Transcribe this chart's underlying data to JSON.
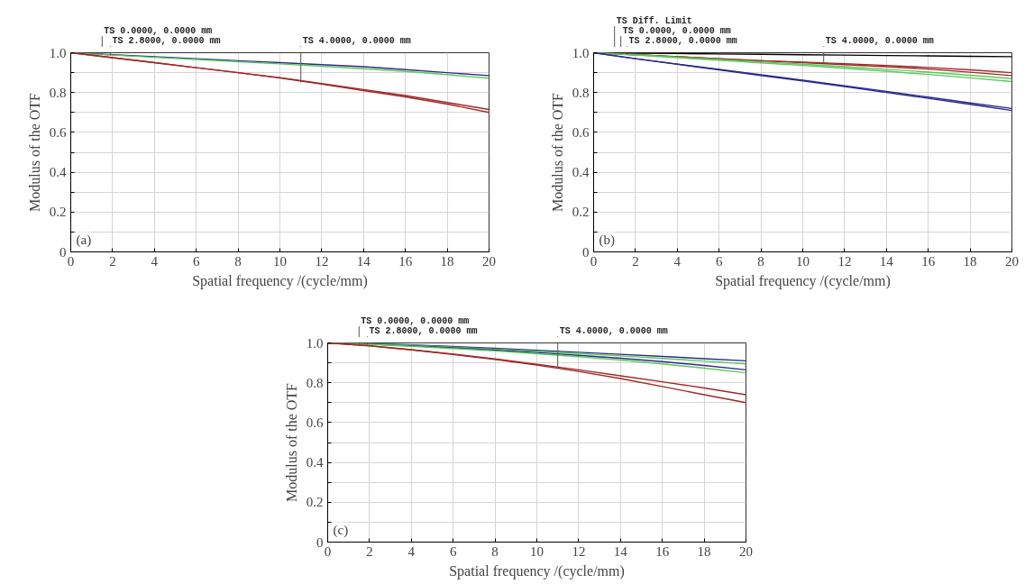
{
  "chart_data": [
    {
      "type": "line",
      "xlabel": "Spatial frequency /(cycle/mm)",
      "ylabel": "Modulus of the OTF",
      "x": [
        0,
        2,
        4,
        6,
        8,
        10,
        12,
        14,
        16,
        18,
        20
      ],
      "xlim": [
        0,
        20
      ],
      "ylim": [
        0,
        1
      ],
      "xticks": [
        0,
        2,
        4,
        6,
        8,
        10,
        12,
        14,
        16,
        18,
        20
      ],
      "yticks": [
        0,
        {
          "value": 0.1,
          "label": null
        },
        0.2,
        {
          "value": 0.3,
          "label": null
        },
        0.4,
        {
          "value": 0.5,
          "label": null
        },
        0.6,
        {
          "value": 0.7,
          "label": null
        },
        0.8,
        {
          "value": 0.9,
          "label": null
        },
        {
          "value": 1,
          "label": "1.0"
        }
      ],
      "grid": true,
      "series": [
        {
          "color": "#2b2b8a",
          "values": [
            1,
            0.99,
            0.98,
            0.97,
            0.96,
            0.95,
            0.94,
            0.93,
            0.915,
            0.9,
            0.885
          ]
        },
        {
          "color": "#5cc85c",
          "values": [
            1,
            0.988,
            0.977,
            0.966,
            0.955,
            0.944,
            0.932,
            0.92,
            0.906,
            0.89,
            0.872
          ]
        },
        {
          "color": "#a02828",
          "values": [
            1,
            0.975,
            0.95,
            0.925,
            0.9,
            0.875,
            0.845,
            0.815,
            0.785,
            0.75,
            0.715
          ]
        },
        {
          "color": "#a02828",
          "values": [
            1,
            0.975,
            0.95,
            0.925,
            0.9,
            0.873,
            0.842,
            0.81,
            0.778,
            0.742,
            0.7
          ]
        }
      ],
      "annotations": [
        {
          "text": "TS 0.0000, 0.0000 mm",
          "x": 1.5,
          "y": 0.99
        },
        {
          "text": "TS 2.8000, 0.0000 mm",
          "x": 1.9,
          "y": 0.99
        },
        {
          "text": "TS 4.0000, 0.0000 mm",
          "x": 11,
          "y": 0.85
        },
        "(a)"
      ]
    },
    {
      "type": "line",
      "xlabel": "Spatial frequency /(cycle/mm)",
      "ylabel": "Modulus of the OTF",
      "x": [
        0,
        2,
        4,
        6,
        8,
        10,
        12,
        14,
        16,
        18,
        20
      ],
      "xlim": [
        0,
        20
      ],
      "ylim": [
        0,
        1
      ],
      "xticks": [
        0,
        2,
        4,
        6,
        8,
        10,
        12,
        14,
        16,
        18,
        20
      ],
      "yticks": [
        0,
        {
          "value": 0.1,
          "label": null
        },
        0.2,
        {
          "value": 0.3,
          "label": null
        },
        0.4,
        {
          "value": 0.5,
          "label": null
        },
        0.6,
        {
          "value": 0.7,
          "label": null
        },
        0.8,
        {
          "value": 0.9,
          "label": null
        },
        {
          "value": 1,
          "label": "1.0"
        }
      ],
      "grid": true,
      "series": [
        {
          "color": "#000000",
          "values": [
            1,
            0.998,
            0.996,
            0.994,
            0.992,
            0.99,
            0.988,
            0.986,
            0.984,
            0.982,
            0.98
          ]
        },
        {
          "color": "#a02828",
          "values": [
            1,
            0.99,
            0.98,
            0.97,
            0.96,
            0.953,
            0.945,
            0.936,
            0.926,
            0.914,
            0.9
          ]
        },
        {
          "color": "#a02828",
          "values": [
            1,
            0.99,
            0.98,
            0.97,
            0.96,
            0.95,
            0.94,
            0.93,
            0.918,
            0.902,
            0.885
          ]
        },
        {
          "color": "#5cc85c",
          "values": [
            1,
            0.99,
            0.978,
            0.966,
            0.954,
            0.942,
            0.93,
            0.917,
            0.903,
            0.887,
            0.87
          ]
        },
        {
          "color": "#5cc85c",
          "values": [
            1,
            0.988,
            0.975,
            0.962,
            0.949,
            0.936,
            0.922,
            0.907,
            0.891,
            0.874,
            0.855
          ]
        },
        {
          "color": "#2b2b8a",
          "values": [
            1,
            0.97,
            0.943,
            0.916,
            0.889,
            0.862,
            0.834,
            0.806,
            0.777,
            0.748,
            0.72
          ]
        },
        {
          "color": "#2b2b8a",
          "values": [
            1,
            0.97,
            0.942,
            0.914,
            0.886,
            0.858,
            0.83,
            0.801,
            0.771,
            0.741,
            0.71
          ]
        }
      ],
      "annotations": [
        {
          "text": "TS Diff. Limit",
          "x": 1,
          "y": 0.999
        },
        {
          "text": "TS 0.0000, 0.0000 mm",
          "x": 1.3,
          "y": 0.99
        },
        {
          "text": "TS 2.8000, 0.0000 mm",
          "x": 1.6,
          "y": 0.99
        },
        {
          "text": "TS 4.0000, 0.0000 mm",
          "x": 11,
          "y": 0.95
        },
        "(b)"
      ]
    },
    {
      "type": "line",
      "xlabel": "Spatial frequency /(cycle/mm)",
      "ylabel": "Modulus of the OTF",
      "x": [
        0,
        2,
        4,
        6,
        8,
        10,
        12,
        14,
        16,
        18,
        20
      ],
      "xlim": [
        0,
        20
      ],
      "ylim": [
        0,
        1
      ],
      "xticks": [
        0,
        2,
        4,
        6,
        8,
        10,
        12,
        14,
        16,
        18,
        20
      ],
      "yticks": [
        0,
        {
          "value": 0.1,
          "label": null
        },
        0.2,
        {
          "value": 0.3,
          "label": null
        },
        0.4,
        {
          "value": 0.5,
          "label": null
        },
        0.6,
        {
          "value": 0.7,
          "label": null
        },
        0.8,
        {
          "value": 0.9,
          "label": null
        },
        {
          "value": 1,
          "label": "1.0"
        }
      ],
      "grid": true,
      "series": [
        {
          "color": "#2b2b8a",
          "values": [
            1,
            0.996,
            0.99,
            0.982,
            0.973,
            0.963,
            0.953,
            0.943,
            0.932,
            0.921,
            0.91
          ]
        },
        {
          "color": "#5cc85c",
          "values": [
            1,
            0.995,
            0.988,
            0.979,
            0.969,
            0.958,
            0.947,
            0.935,
            0.922,
            0.909,
            0.895
          ]
        },
        {
          "color": "#2b2b8a",
          "values": [
            1,
            0.994,
            0.985,
            0.975,
            0.964,
            0.952,
            0.938,
            0.923,
            0.906,
            0.887,
            0.865
          ]
        },
        {
          "color": "#5cc85c",
          "values": [
            1,
            0.993,
            0.983,
            0.972,
            0.96,
            0.946,
            0.931,
            0.914,
            0.895,
            0.873,
            0.85
          ]
        },
        {
          "color": "#a02828",
          "values": [
            1,
            0.986,
            0.966,
            0.944,
            0.92,
            0.893,
            0.865,
            0.835,
            0.805,
            0.774,
            0.74
          ]
        },
        {
          "color": "#a02828",
          "values": [
            1,
            0.985,
            0.965,
            0.942,
            0.917,
            0.889,
            0.857,
            0.821,
            0.781,
            0.74,
            0.7
          ]
        }
      ],
      "annotations": [
        {
          "text": "TS 0.0000, 0.0000 mm",
          "x": 1.5,
          "y": 0.99
        },
        {
          "text": "TS 2.8000, 0.0000 mm",
          "x": 1.9,
          "y": 0.99
        },
        {
          "text": "TS 4.0000, 0.0000 mm",
          "x": 11,
          "y": 0.875
        },
        "(c)"
      ]
    }
  ]
}
